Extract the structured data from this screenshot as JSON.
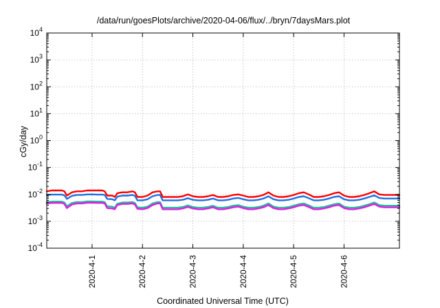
{
  "chart_data": {
    "type": "line",
    "title": "/data/run/goesPlots/archive/2020-04-06/flux/../bryn/7daysMars.plot",
    "xlabel": "Coordinated Universal Time (UTC)",
    "ylabel": "cGy/day",
    "yscale": "log",
    "ylim": [
      0.0001,
      10000
    ],
    "y_ticks": [
      {
        "base": "10",
        "exp": "-4"
      },
      {
        "base": "10",
        "exp": "-3"
      },
      {
        "base": "10",
        "exp": "-2"
      },
      {
        "base": "10",
        "exp": "-1"
      },
      {
        "base": "10",
        "exp": "0"
      },
      {
        "base": "10",
        "exp": "1"
      },
      {
        "base": "10",
        "exp": "2"
      },
      {
        "base": "10",
        "exp": "3"
      },
      {
        "base": "10",
        "exp": "4"
      }
    ],
    "xlim": [
      -0.9,
      6.1
    ],
    "x_ticks": [
      {
        "label": "2020-4-1",
        "x": 0
      },
      {
        "label": "2020-4-2",
        "x": 1
      },
      {
        "label": "2020-4-3",
        "x": 2
      },
      {
        "label": "2020-4-4",
        "x": 3
      },
      {
        "label": "2020-4-5",
        "x": 4
      },
      {
        "label": "2020-4-6",
        "x": 5
      }
    ],
    "grid": true,
    "series": [
      {
        "color": "#ff0000",
        "x": [
          -0.9,
          -0.8,
          -0.6,
          -0.55,
          -0.5,
          -0.4,
          -0.3,
          -0.2,
          -0.1,
          0,
          0.1,
          0.2,
          0.25,
          0.3,
          0.4,
          0.45,
          0.5,
          0.6,
          0.7,
          0.8,
          0.85,
          0.9,
          1.0,
          1.1,
          1.2,
          1.3,
          1.35,
          1.4,
          1.5,
          1.6,
          1.7,
          1.8,
          1.9,
          2.0,
          2.1,
          2.2,
          2.3,
          2.4,
          2.5,
          2.6,
          2.7,
          2.8,
          2.9,
          3.0,
          3.1,
          3.2,
          3.3,
          3.4,
          3.5,
          3.6,
          3.7,
          3.8,
          3.9,
          4.0,
          4.1,
          4.2,
          4.3,
          4.4,
          4.5,
          4.6,
          4.7,
          4.8,
          4.9,
          5.0,
          5.1,
          5.2,
          5.3,
          5.4,
          5.5,
          5.6,
          5.7,
          5.8,
          5.9,
          6.0,
          6.1
        ],
        "y": [
          0.013,
          0.014,
          0.014,
          0.013,
          0.009,
          0.012,
          0.013,
          0.013,
          0.014,
          0.014,
          0.014,
          0.014,
          0.013,
          0.009,
          0.009,
          0.008,
          0.011,
          0.012,
          0.012,
          0.013,
          0.012,
          0.008,
          0.008,
          0.009,
          0.012,
          0.013,
          0.013,
          0.008,
          0.008,
          0.008,
          0.008,
          0.0085,
          0.01,
          0.0085,
          0.008,
          0.008,
          0.0085,
          0.0095,
          0.008,
          0.008,
          0.0085,
          0.0095,
          0.01,
          0.009,
          0.008,
          0.008,
          0.0085,
          0.0095,
          0.012,
          0.009,
          0.008,
          0.008,
          0.0085,
          0.0095,
          0.011,
          0.012,
          0.01,
          0.008,
          0.008,
          0.0085,
          0.0095,
          0.011,
          0.012,
          0.009,
          0.008,
          0.008,
          0.0085,
          0.0095,
          0.011,
          0.013,
          0.01,
          0.0095,
          0.0095,
          0.0095,
          0.0095
        ]
      },
      {
        "color": "#1f6fe0",
        "x": [
          -0.9,
          -0.8,
          -0.6,
          -0.55,
          -0.5,
          -0.4,
          -0.3,
          -0.2,
          -0.1,
          0,
          0.1,
          0.2,
          0.25,
          0.3,
          0.4,
          0.45,
          0.5,
          0.6,
          0.7,
          0.8,
          0.85,
          0.9,
          1.0,
          1.1,
          1.2,
          1.3,
          1.35,
          1.4,
          1.5,
          1.6,
          1.7,
          1.8,
          1.9,
          2.0,
          2.1,
          2.2,
          2.3,
          2.4,
          2.5,
          2.6,
          2.7,
          2.8,
          2.9,
          3.0,
          3.1,
          3.2,
          3.3,
          3.4,
          3.5,
          3.6,
          3.7,
          3.8,
          3.9,
          4.0,
          4.1,
          4.2,
          4.3,
          4.4,
          4.5,
          4.6,
          4.7,
          4.8,
          4.9,
          5.0,
          5.1,
          5.2,
          5.3,
          5.4,
          5.5,
          5.6,
          5.7,
          5.8,
          5.9,
          6.0,
          6.1
        ],
        "y": [
          0.0095,
          0.0098,
          0.0098,
          0.0092,
          0.0068,
          0.0088,
          0.0095,
          0.0095,
          0.01,
          0.01,
          0.0098,
          0.0098,
          0.0095,
          0.0068,
          0.0066,
          0.006,
          0.0082,
          0.009,
          0.009,
          0.0095,
          0.0088,
          0.006,
          0.006,
          0.0066,
          0.0085,
          0.0095,
          0.0095,
          0.006,
          0.006,
          0.006,
          0.006,
          0.0063,
          0.0072,
          0.0063,
          0.006,
          0.006,
          0.0063,
          0.007,
          0.006,
          0.006,
          0.0063,
          0.007,
          0.0074,
          0.0066,
          0.006,
          0.006,
          0.0063,
          0.007,
          0.0085,
          0.0066,
          0.006,
          0.006,
          0.0063,
          0.007,
          0.008,
          0.0085,
          0.0072,
          0.006,
          0.006,
          0.0063,
          0.007,
          0.008,
          0.0085,
          0.0066,
          0.006,
          0.006,
          0.0063,
          0.007,
          0.008,
          0.0092,
          0.0074,
          0.007,
          0.007,
          0.007,
          0.007
        ]
      },
      {
        "color": "#22b8a0",
        "x": [
          -0.9,
          -0.8,
          -0.6,
          -0.55,
          -0.5,
          -0.4,
          -0.3,
          -0.2,
          -0.1,
          0,
          0.1,
          0.2,
          0.25,
          0.3,
          0.4,
          0.45,
          0.5,
          0.6,
          0.7,
          0.8,
          0.85,
          0.9,
          1.0,
          1.1,
          1.2,
          1.3,
          1.35,
          1.4,
          1.5,
          1.6,
          1.7,
          1.8,
          1.9,
          2.0,
          2.1,
          2.2,
          2.3,
          2.4,
          2.5,
          2.6,
          2.7,
          2.8,
          2.9,
          3.0,
          3.1,
          3.2,
          3.3,
          3.4,
          3.5,
          3.6,
          3.7,
          3.8,
          3.9,
          4.0,
          4.1,
          4.2,
          4.3,
          4.4,
          4.5,
          4.6,
          4.7,
          4.8,
          4.9,
          5.0,
          5.1,
          5.2,
          5.3,
          5.4,
          5.5,
          5.6,
          5.7,
          5.8,
          5.9,
          6.0,
          6.1
        ],
        "y": [
          0.0052,
          0.0054,
          0.0054,
          0.005,
          0.0036,
          0.0048,
          0.0052,
          0.0052,
          0.0055,
          0.0055,
          0.0054,
          0.0054,
          0.0052,
          0.0036,
          0.0035,
          0.0032,
          0.0045,
          0.005,
          0.005,
          0.0052,
          0.0048,
          0.0033,
          0.0032,
          0.0035,
          0.0046,
          0.0052,
          0.0052,
          0.0032,
          0.0032,
          0.0032,
          0.0032,
          0.0034,
          0.0039,
          0.0034,
          0.0032,
          0.0032,
          0.0034,
          0.0038,
          0.0032,
          0.0032,
          0.0034,
          0.0038,
          0.004,
          0.0035,
          0.0032,
          0.0032,
          0.0034,
          0.0038,
          0.0046,
          0.0035,
          0.0032,
          0.0032,
          0.0034,
          0.0038,
          0.0043,
          0.0046,
          0.0039,
          0.0032,
          0.0032,
          0.0034,
          0.0038,
          0.0043,
          0.0046,
          0.0035,
          0.0032,
          0.0032,
          0.0034,
          0.0038,
          0.0043,
          0.005,
          0.004,
          0.0038,
          0.0038,
          0.0038,
          0.0038
        ]
      },
      {
        "color": "#e01ee0",
        "x": [
          -0.9,
          -0.8,
          -0.6,
          -0.55,
          -0.5,
          -0.4,
          -0.3,
          -0.2,
          -0.1,
          0,
          0.1,
          0.2,
          0.25,
          0.3,
          0.4,
          0.45,
          0.5,
          0.6,
          0.7,
          0.8,
          0.85,
          0.9,
          1.0,
          1.1,
          1.2,
          1.3,
          1.35,
          1.4,
          1.5,
          1.6,
          1.7,
          1.8,
          1.9,
          2.0,
          2.1,
          2.2,
          2.3,
          2.4,
          2.5,
          2.6,
          2.7,
          2.8,
          2.9,
          3.0,
          3.1,
          3.2,
          3.3,
          3.4,
          3.5,
          3.6,
          3.7,
          3.8,
          3.9,
          4.0,
          4.1,
          4.2,
          4.3,
          4.4,
          4.5,
          4.6,
          4.7,
          4.8,
          4.9,
          5.0,
          5.1,
          5.2,
          5.3,
          5.4,
          5.5,
          5.6,
          5.7,
          5.8,
          5.9,
          6.0,
          6.1
        ],
        "y": [
          0.0046,
          0.0048,
          0.0048,
          0.0044,
          0.0031,
          0.0042,
          0.0046,
          0.0046,
          0.0049,
          0.0049,
          0.0048,
          0.0048,
          0.0046,
          0.0031,
          0.003,
          0.0028,
          0.004,
          0.0044,
          0.0044,
          0.0046,
          0.0042,
          0.0029,
          0.0028,
          0.0031,
          0.004,
          0.0046,
          0.0046,
          0.0028,
          0.0028,
          0.0028,
          0.0028,
          0.003,
          0.0034,
          0.003,
          0.0028,
          0.0028,
          0.003,
          0.0033,
          0.0028,
          0.0028,
          0.003,
          0.0033,
          0.0035,
          0.0031,
          0.0028,
          0.0028,
          0.003,
          0.0033,
          0.004,
          0.0031,
          0.0028,
          0.0028,
          0.003,
          0.0033,
          0.0038,
          0.004,
          0.0034,
          0.0028,
          0.0028,
          0.003,
          0.0033,
          0.0038,
          0.004,
          0.0031,
          0.0028,
          0.0028,
          0.003,
          0.0033,
          0.0038,
          0.0044,
          0.0035,
          0.0033,
          0.0033,
          0.0033,
          0.0033
        ]
      }
    ]
  }
}
